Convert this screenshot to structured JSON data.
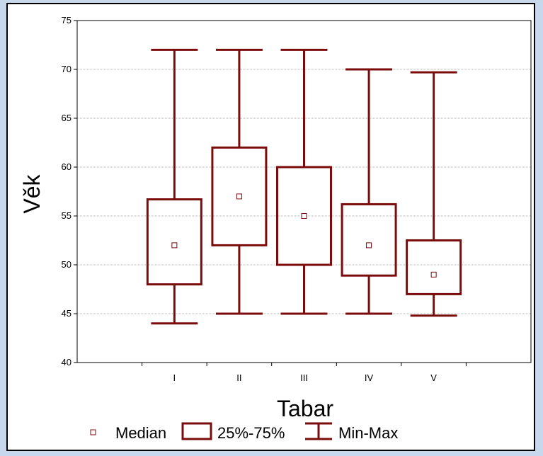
{
  "chart_data": {
    "type": "boxplot",
    "title": "",
    "xlabel": "Tabar",
    "ylabel": "Věk",
    "ylim": [
      40,
      75
    ],
    "yticks": [
      40,
      45,
      50,
      55,
      60,
      65,
      70,
      75
    ],
    "ytick_labels": [
      "40",
      "45",
      "50",
      "55",
      "60",
      "65",
      "70",
      "75"
    ],
    "grid": true,
    "categories": [
      "I",
      "II",
      "III",
      "IV",
      "V"
    ],
    "boxes": [
      {
        "category": "I",
        "min": 44,
        "q1": 48,
        "median": 52,
        "q3": 56.7,
        "max": 72
      },
      {
        "category": "II",
        "min": 45,
        "q1": 52,
        "median": 57,
        "q3": 62,
        "max": 72
      },
      {
        "category": "III",
        "min": 45,
        "q1": 50,
        "median": 55,
        "q3": 60,
        "max": 72
      },
      {
        "category": "IV",
        "min": 45,
        "q1": 48.9,
        "median": 52,
        "q3": 56.2,
        "max": 70
      },
      {
        "category": "V",
        "min": 44.8,
        "q1": 47,
        "median": 49,
        "q3": 52.5,
        "max": 69.7
      }
    ],
    "legend": {
      "placement": "bottom",
      "items": [
        "Median",
        "25%-75%",
        "Min-Max"
      ]
    },
    "colors": {
      "box": "#7b0c0c",
      "grid": "#9a9a9a",
      "background": "#ffffff",
      "outer": "#c8d8ec"
    }
  }
}
